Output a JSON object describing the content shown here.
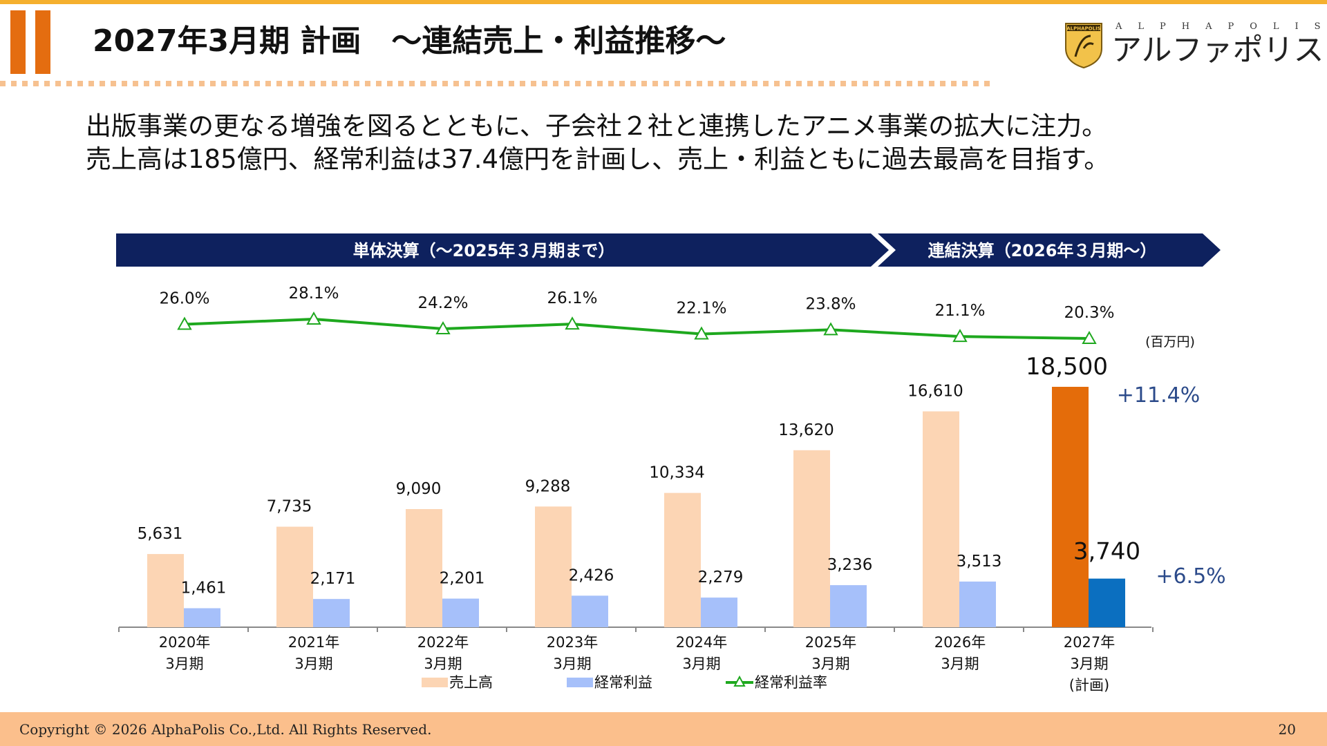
{
  "header": {
    "title": "2027年3月期 計画　～連結売上・利益推移～",
    "logo": {
      "sub": "ALPHAPOLIS",
      "main": "アルファポリス",
      "badge": "ALPHAPOLIS"
    }
  },
  "lead": {
    "line1": "出版事業の更なる増強を図るとともに、子会社２社と連携したアニメ事業の拡大に注力。",
    "line2": "売上高は185億円、経常利益は37.4億円を計画し、売上・利益ともに過去最高を目指す。"
  },
  "footer": {
    "copyright": "Copyright © 2026 AlphaPolis Co.,Ltd.  All Rights Reserved.",
    "page": "20"
  },
  "chart_data": {
    "type": "bar",
    "unit_label": "(百万円)",
    "banners": [
      {
        "label": "単体決算（～2025年３月期まで）",
        "color": "#0e215e"
      },
      {
        "label": "連結決算（2026年３月期～）",
        "color": "#0e215e"
      }
    ],
    "categories": [
      [
        "2020年",
        "3月期"
      ],
      [
        "2021年",
        "3月期"
      ],
      [
        "2022年",
        "3月期"
      ],
      [
        "2023年",
        "3月期"
      ],
      [
        "2024年",
        "3月期"
      ],
      [
        "2025年",
        "3月期"
      ],
      [
        "2026年",
        "3月期"
      ],
      [
        "2027年",
        "3月期",
        "(計画)"
      ]
    ],
    "series": [
      {
        "name": "売上高",
        "type": "bar",
        "color": "#fcd5b4",
        "highlight_color": "#e46c0a",
        "values": [
          5631,
          7735,
          9090,
          9288,
          10334,
          13620,
          16610,
          18500
        ],
        "labels": [
          "5,631",
          "7,735",
          "9,090",
          "9,288",
          "10,334",
          "13,620",
          "16,610",
          "18,500"
        ]
      },
      {
        "name": "経常利益",
        "type": "bar",
        "color": "#a6c0fa",
        "highlight_color": "#0b6fc0",
        "values": [
          1461,
          2171,
          2201,
          2426,
          2279,
          3236,
          3513,
          3740
        ],
        "labels": [
          "1,461",
          "2,171",
          "2,201",
          "2,426",
          "2,279",
          "3,236",
          "3,513",
          "3,740"
        ]
      },
      {
        "name": "経常利益率",
        "type": "line",
        "color": "#1ea81e",
        "values": [
          26.0,
          28.1,
          24.2,
          26.1,
          22.1,
          23.8,
          21.1,
          20.3
        ],
        "labels": [
          "26.0%",
          "28.1%",
          "24.2%",
          "26.1%",
          "22.1%",
          "23.8%",
          "21.1%",
          "20.3%"
        ]
      }
    ],
    "growth_annotations": {
      "sales": "+11.4%",
      "profit": "+6.5%",
      "color": "#2b4a8a"
    },
    "ylim": [
      0,
      20000
    ],
    "legend": "bottom"
  }
}
